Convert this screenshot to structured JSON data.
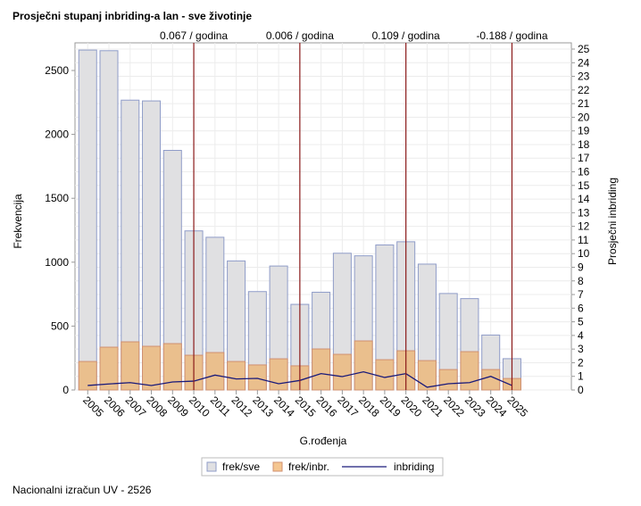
{
  "chart_data": {
    "type": "bar",
    "title": "Prosječni stupanj inbriding-a lan - sve životinje",
    "footnote": "Nacionalni izračun UV - 2526",
    "xlabel": "G.rođenja",
    "ylabel": "Frekvencija",
    "y2label": "Prosječni inbriding",
    "categories": [
      "2005",
      "2006",
      "2007",
      "2008",
      "2009",
      "2010",
      "2011",
      "2012",
      "2013",
      "2014",
      "2015",
      "2016",
      "2017",
      "2018",
      "2019",
      "2020",
      "2021",
      "2022",
      "2023",
      "2024",
      "2025"
    ],
    "ylim": [
      0,
      2600
    ],
    "yticks": [
      0,
      500,
      1000,
      1500,
      2000,
      2500
    ],
    "y2lim": [
      0,
      25
    ],
    "y2ticks": [
      0,
      1,
      2,
      3,
      4,
      5,
      6,
      7,
      8,
      9,
      10,
      11,
      12,
      13,
      14,
      15,
      16,
      17,
      18,
      19,
      20,
      21,
      22,
      23,
      24,
      25
    ],
    "xlim": [
      2004.4,
      2027.8
    ],
    "grid": true,
    "legend_position": "bottom",
    "series": [
      {
        "name": "frek/sve",
        "type": "bar",
        "axis": "left",
        "color": "#e0e0e2",
        "edge": "#8f9cc8",
        "values": [
          2660,
          2655,
          2268,
          2262,
          1875,
          1245,
          1195,
          1010,
          770,
          970,
          670,
          765,
          1070,
          1050,
          1135,
          1160,
          985,
          755,
          715,
          430,
          245
        ]
      },
      {
        "name": "frek/inbr.",
        "type": "bar",
        "axis": "left",
        "color": "#ebbb84",
        "edge": "#d09070",
        "values": [
          223,
          335,
          377,
          342,
          363,
          272,
          293,
          223,
          196,
          244,
          189,
          321,
          279,
          384,
          237,
          307,
          230,
          160,
          300,
          160,
          90
        ]
      },
      {
        "name": "inbriding",
        "type": "line",
        "axis": "right",
        "color": "#1a1a7a",
        "values": [
          0.33,
          0.44,
          0.54,
          0.33,
          0.59,
          0.65,
          1.09,
          0.81,
          0.85,
          0.46,
          0.7,
          1.2,
          0.98,
          1.33,
          0.92,
          1.2,
          0.2,
          0.46,
          0.54,
          1.0,
          0.33
        ]
      }
    ],
    "reference_lines": [
      {
        "x": "2010",
        "label": "0.067 / godina"
      },
      {
        "x": "2015",
        "label": "0.006 / godina"
      },
      {
        "x": "2020",
        "label": "0.109 / godina"
      },
      {
        "x": "2025",
        "label": "-0.188 / godina"
      }
    ],
    "reference_line_color": "#8b1a1a"
  }
}
